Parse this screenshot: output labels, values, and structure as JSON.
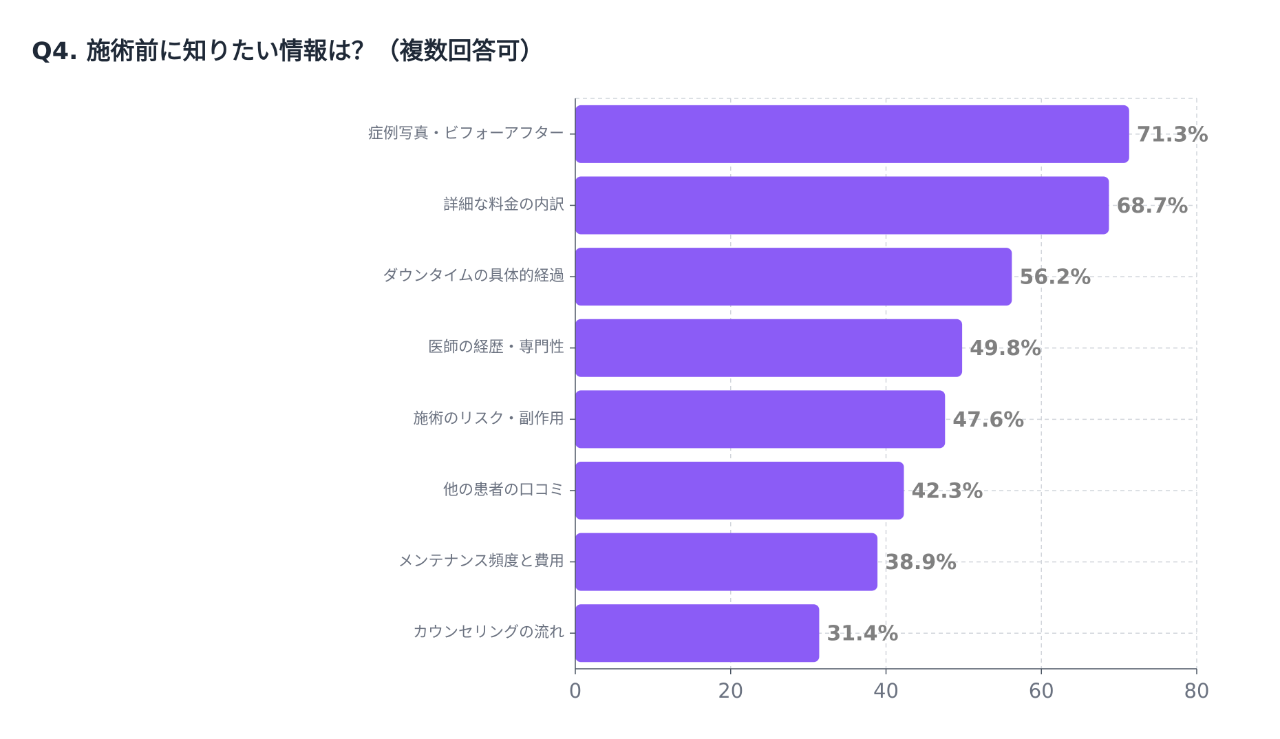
{
  "chart_data": {
    "type": "bar",
    "orientation": "horizontal",
    "title": "Q4. 施術前に知りたい情報は？（複数回答可）",
    "categories": [
      "症例写真・ビフォーアフター",
      "詳細な料金の内訳",
      "ダウンタイムの具体的経過",
      "医師の経歴・専門性",
      "施術のリスク・副作用",
      "他の患者の口コミ",
      "メンテナンス頻度と費用",
      "カウンセリングの流れ"
    ],
    "values": [
      71.3,
      68.7,
      56.2,
      49.8,
      47.6,
      42.3,
      38.9,
      31.4
    ],
    "value_labels": [
      "71.3%",
      "68.7%",
      "56.2%",
      "49.8%",
      "47.6%",
      "42.3%",
      "38.9%",
      "31.4%"
    ],
    "xlim": [
      0,
      80
    ],
    "xticks": [
      0,
      20,
      40,
      60,
      80
    ],
    "xtick_labels": [
      "0",
      "20",
      "40",
      "60",
      "80"
    ],
    "xlabel": "",
    "ylabel": "",
    "grid": true,
    "bar_color": "#8b5cf6"
  }
}
